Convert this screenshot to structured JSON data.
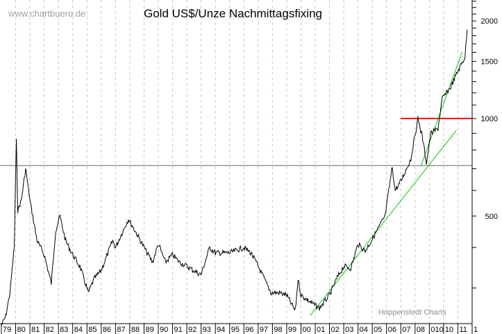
{
  "chart_data": {
    "type": "line",
    "title": "Gold US$/Unze Nachmittagsfixing",
    "watermark": "www.chartbuero.de",
    "source": "Hoppenstedt Charts",
    "y_scale": "log",
    "ylim": [
      233,
      2320
    ],
    "xlim": [
      1979,
      2012
    ],
    "grid": "vertical dashed per year",
    "y_ticks": [
      500,
      1000,
      1500,
      2000
    ],
    "x_tick_labels": [
      "79",
      "80",
      "81",
      "82",
      "83",
      "84",
      "85",
      "86",
      "87",
      "88",
      "89",
      "90",
      "91",
      "92",
      "93",
      "94",
      "95",
      "96",
      "97",
      "98",
      "99",
      "00",
      "01",
      "02",
      "03",
      "04",
      "05",
      "06",
      "07",
      "08",
      "010",
      "10",
      "11",
      "1"
    ],
    "series": [
      {
        "color": "#000000",
        "points": [
          [
            1979.0,
            230
          ],
          [
            1979.3,
            245
          ],
          [
            1979.6,
            290
          ],
          [
            1979.9,
            400
          ],
          [
            1980.05,
            850
          ],
          [
            1980.15,
            520
          ],
          [
            1980.4,
            560
          ],
          [
            1980.7,
            700
          ],
          [
            1981.0,
            560
          ],
          [
            1981.5,
            420
          ],
          [
            1982.0,
            380
          ],
          [
            1982.5,
            310
          ],
          [
            1982.8,
            450
          ],
          [
            1983.1,
            500
          ],
          [
            1983.5,
            420
          ],
          [
            1984.0,
            380
          ],
          [
            1984.5,
            350
          ],
          [
            1985.1,
            290
          ],
          [
            1985.5,
            320
          ],
          [
            1986.0,
            340
          ],
          [
            1986.8,
            420
          ],
          [
            1987.0,
            400
          ],
          [
            1987.9,
            490
          ],
          [
            1988.5,
            440
          ],
          [
            1989.0,
            400
          ],
          [
            1989.6,
            360
          ],
          [
            1990.0,
            410
          ],
          [
            1990.5,
            360
          ],
          [
            1991.0,
            380
          ],
          [
            1991.5,
            360
          ],
          [
            1992.0,
            350
          ],
          [
            1992.7,
            335
          ],
          [
            1993.0,
            330
          ],
          [
            1993.6,
            400
          ],
          [
            1994.0,
            385
          ],
          [
            1995.0,
            385
          ],
          [
            1996.0,
            400
          ],
          [
            1996.5,
            385
          ],
          [
            1997.0,
            350
          ],
          [
            1997.9,
            290
          ],
          [
            1998.5,
            290
          ],
          [
            1999.0,
            285
          ],
          [
            1999.6,
            255
          ],
          [
            1999.8,
            320
          ],
          [
            2000.0,
            285
          ],
          [
            2001.0,
            265
          ],
          [
            2001.3,
            260
          ],
          [
            2002.0,
            285
          ],
          [
            2002.5,
            320
          ],
          [
            2003.0,
            350
          ],
          [
            2003.5,
            345
          ],
          [
            2004.0,
            410
          ],
          [
            2004.5,
            390
          ],
          [
            2005.0,
            425
          ],
          [
            2005.9,
            500
          ],
          [
            2006.4,
            710
          ],
          [
            2006.6,
            600
          ],
          [
            2007.0,
            640
          ],
          [
            2007.7,
            750
          ],
          [
            2008.2,
            1000
          ],
          [
            2008.5,
            880
          ],
          [
            2008.8,
            730
          ],
          [
            2009.1,
            900
          ],
          [
            2009.6,
            930
          ],
          [
            2009.9,
            1150
          ],
          [
            2010.5,
            1250
          ],
          [
            2011.0,
            1400
          ],
          [
            2011.5,
            1550
          ],
          [
            2011.65,
            1880
          ]
        ]
      }
    ],
    "annotations": {
      "horizontal_gray": {
        "value": 716,
        "color": "#606060"
      },
      "horizontal_red": {
        "value": 1000,
        "from": 2007.0,
        "to": 2012,
        "color": "#ff0000"
      },
      "trend_lines": [
        {
          "from": [
            2000.65,
            247
          ],
          "to": [
            2010.9,
            920
          ],
          "color": "#00cc00"
        },
        {
          "from": [
            2008.4,
            712
          ],
          "to": [
            2011.3,
            1604
          ],
          "color": "#00cc00"
        }
      ]
    }
  }
}
